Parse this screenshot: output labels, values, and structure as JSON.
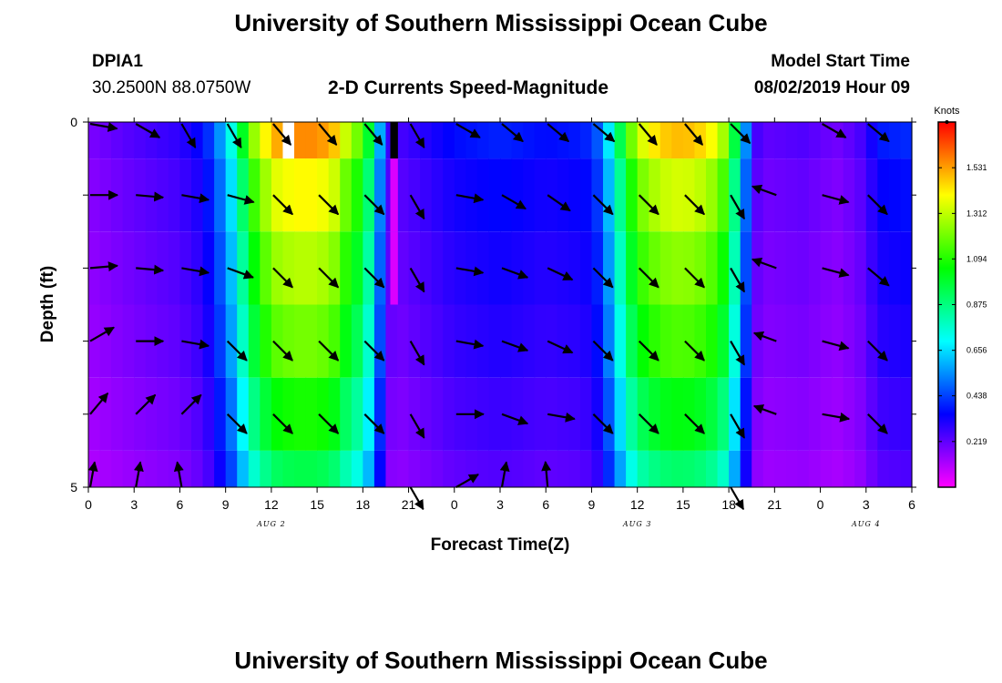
{
  "page": {
    "title_top": "University of Southern Mississippi Ocean Cube",
    "title_bottom": "University of Southern Mississippi Ocean Cube",
    "station": "DPIA1",
    "location": "30.2500N 88.0750W",
    "subtitle": "2-D Currents Speed-Magnitude",
    "model_start_label": "Model Start Time",
    "model_start_value": "08/02/2019 Hour 09"
  },
  "chart_data": {
    "type": "heatmap",
    "title": "2-D Currents Speed-Magnitude",
    "xlabel": "Forecast Time(Z)",
    "ylabel": "Depth (ft)",
    "x_tick_labels": [
      "0",
      "3",
      "6",
      "9",
      "12",
      "15",
      "18",
      "21",
      "0",
      "3",
      "6",
      "9",
      "12",
      "15",
      "18",
      "21",
      "0",
      "3",
      "6"
    ],
    "y_tick_labels": [
      "0",
      "5"
    ],
    "date_labels": [
      {
        "text": "AUG 2",
        "hours": 12
      },
      {
        "text": "AUG 3",
        "hours": 36
      },
      {
        "text": "AUG 4",
        "hours": 51
      }
    ],
    "x_range_hours": [
      0,
      54
    ],
    "y_range_ft": [
      0,
      5
    ],
    "colorbar": {
      "unit": "Knots",
      "range": [
        0,
        1.75
      ],
      "ticks": [
        "1.531",
        "1.312",
        "1.094",
        "0.875",
        "0.656",
        "0.438",
        "0.219"
      ],
      "tick_values": [
        1.531,
        1.312,
        1.094,
        0.875,
        0.656,
        0.438,
        0.219
      ]
    },
    "depth_layers_ft": [
      0,
      1,
      2,
      3,
      4,
      5
    ],
    "speed_profile": [
      [
        0.0,
        0.15
      ],
      [
        3.0,
        0.2
      ],
      [
        6.0,
        0.24
      ],
      [
        7.5,
        0.3
      ],
      [
        8.0,
        0.36
      ],
      [
        8.5,
        0.44
      ],
      [
        9.0,
        0.52
      ],
      [
        9.5,
        0.64
      ],
      [
        10.0,
        0.8
      ],
      [
        10.5,
        0.95
      ],
      [
        11.0,
        1.08
      ],
      [
        11.5,
        1.15
      ],
      [
        12.0,
        1.25
      ],
      [
        13.5,
        1.3
      ],
      [
        15.0,
        1.3
      ],
      [
        16.0,
        1.25
      ],
      [
        16.5,
        1.18
      ],
      [
        17.0,
        1.08
      ],
      [
        18.0,
        0.96
      ],
      [
        18.5,
        0.78
      ],
      [
        19.0,
        0.55
      ],
      [
        19.5,
        0.3
      ],
      [
        20.0,
        0.2
      ],
      [
        24.0,
        0.3
      ],
      [
        27.0,
        0.33
      ],
      [
        30.0,
        0.3
      ],
      [
        32.5,
        0.32
      ],
      [
        33.5,
        0.4
      ],
      [
        34.0,
        0.52
      ],
      [
        34.5,
        0.68
      ],
      [
        35.0,
        0.82
      ],
      [
        35.5,
        0.97
      ],
      [
        36.0,
        1.1
      ],
      [
        37.5,
        1.22
      ],
      [
        39.0,
        1.25
      ],
      [
        40.5,
        1.2
      ],
      [
        41.5,
        1.1
      ],
      [
        42.0,
        0.95
      ],
      [
        42.5,
        0.75
      ],
      [
        43.0,
        0.5
      ],
      [
        43.5,
        0.3
      ],
      [
        44.0,
        0.18
      ],
      [
        47.0,
        0.2
      ],
      [
        49.0,
        0.16
      ],
      [
        50.5,
        0.2
      ],
      [
        52.0,
        0.32
      ],
      [
        54.0,
        0.34
      ]
    ],
    "layer_factors": [
      1.2,
      1.08,
      1.0,
      0.93,
      0.83,
      0.73
    ],
    "special_cells": [
      {
        "hours": 12.75,
        "hours_to": 13.5,
        "depth_ft": 0,
        "speed": 0.0
      },
      {
        "hours": 19.8,
        "hours_to": 20.3,
        "depth_ft": 0,
        "speed": 1.75
      },
      {
        "hours": 19.8,
        "hours_to": 20.3,
        "depth_ft": 1,
        "speed": 0.05
      },
      {
        "hours": 19.8,
        "hours_to": 20.3,
        "depth_ft": 2,
        "speed": 0.05
      }
    ],
    "vector_hours": [
      0,
      3,
      6,
      9,
      12,
      15,
      18,
      21,
      24,
      27,
      30,
      33,
      36,
      39,
      42,
      45,
      48,
      51
    ],
    "vector_depths_ft": [
      0,
      1,
      2,
      3,
      4,
      5
    ],
    "vectors_deg": [
      [
        10,
        30,
        60,
        60,
        50,
        50,
        50,
        60,
        30,
        40,
        40,
        40,
        50,
        50,
        45,
        200,
        30,
        40
      ],
      [
        0,
        5,
        10,
        15,
        45,
        45,
        45,
        60,
        10,
        30,
        35,
        45,
        45,
        45,
        60,
        200,
        15,
        45
      ],
      [
        -5,
        5,
        10,
        20,
        45,
        45,
        45,
        60,
        10,
        20,
        25,
        45,
        45,
        45,
        60,
        200,
        15,
        40
      ],
      [
        -30,
        0,
        10,
        45,
        45,
        45,
        45,
        60,
        10,
        20,
        25,
        45,
        45,
        45,
        60,
        200,
        15,
        45
      ],
      [
        -50,
        -45,
        -45,
        45,
        45,
        45,
        45,
        60,
        0,
        20,
        10,
        45,
        45,
        45,
        60,
        200,
        10,
        45
      ],
      [
        -80,
        -80,
        -100,
        -100,
        -100,
        -100,
        -100,
        60,
        -30,
        -80,
        -95,
        -100,
        -100,
        -100,
        60,
        -100,
        -100,
        -100
      ]
    ],
    "vector_lengths": [
      [
        30,
        30,
        30,
        30,
        30,
        30,
        30,
        30,
        30,
        30,
        30,
        30,
        30,
        30,
        30,
        0,
        30,
        30
      ],
      [
        30,
        30,
        30,
        30,
        30,
        30,
        30,
        30,
        30,
        30,
        30,
        30,
        30,
        30,
        30,
        28,
        30,
        30
      ],
      [
        30,
        30,
        30,
        30,
        30,
        30,
        30,
        30,
        30,
        30,
        30,
        30,
        30,
        30,
        30,
        28,
        30,
        30
      ],
      [
        30,
        30,
        30,
        30,
        30,
        30,
        30,
        30,
        30,
        30,
        30,
        30,
        30,
        30,
        30,
        26,
        30,
        30
      ],
      [
        30,
        30,
        30,
        30,
        30,
        30,
        30,
        30,
        30,
        30,
        30,
        30,
        30,
        30,
        30,
        26,
        30,
        30
      ],
      [
        28,
        28,
        28,
        0,
        0,
        0,
        0,
        28,
        28,
        28,
        28,
        0,
        0,
        0,
        28,
        0,
        0,
        0
      ]
    ]
  }
}
